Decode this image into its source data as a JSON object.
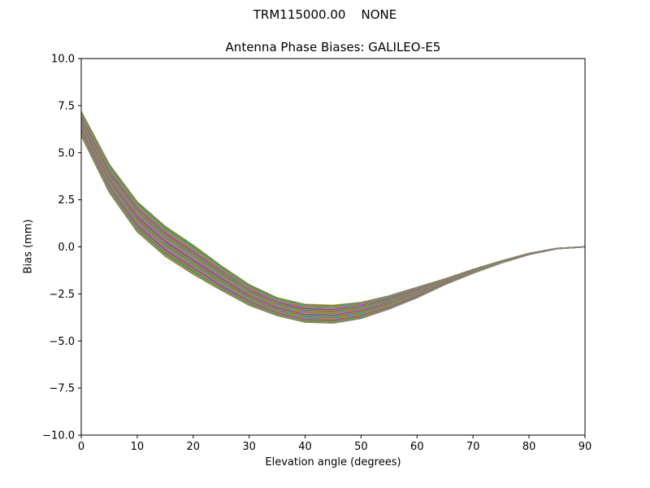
{
  "chart_data": {
    "type": "line",
    "suptitle": "TRM115000.00    NONE",
    "title": "Antenna Phase Biases: GALILEO-E5",
    "xlabel": "Elevation angle (degrees)",
    "ylabel": "Bias (mm)",
    "xlim": [
      0,
      90
    ],
    "ylim": [
      -10,
      10
    ],
    "x_ticks": [
      0,
      10,
      20,
      30,
      40,
      50,
      60,
      70,
      80,
      90
    ],
    "x_tick_labels": [
      "0",
      "10",
      "20",
      "30",
      "40",
      "50",
      "60",
      "70",
      "80",
      "90"
    ],
    "y_ticks": [
      -10,
      -7.5,
      -5,
      -2.5,
      0,
      2.5,
      5,
      7.5,
      10
    ],
    "y_tick_labels": [
      "−10.0",
      "−7.5",
      "−5.0",
      "−2.5",
      "0.0",
      "2.5",
      "5.0",
      "7.5",
      "10.0"
    ],
    "grid": false,
    "legend": "none",
    "x": [
      0,
      5,
      10,
      15,
      20,
      25,
      30,
      35,
      40,
      45,
      50,
      55,
      60,
      65,
      70,
      75,
      80,
      85,
      90
    ],
    "series": [
      {
        "values": [
          7.2,
          4.4,
          2.4,
          1.1,
          0.1,
          -1.0,
          -2.0,
          -2.7,
          -3.05,
          -3.1,
          -2.95,
          -2.6,
          -2.15,
          -1.7,
          -1.2,
          -0.75,
          -0.35,
          -0.08,
          0.0
        ]
      },
      {
        "values": [
          7.0,
          4.1,
          2.15,
          0.85,
          -0.15,
          -1.2,
          -2.2,
          -2.85,
          -3.2,
          -3.25,
          -3.05,
          -2.7,
          -2.2,
          -1.72,
          -1.22,
          -0.76,
          -0.35,
          -0.08,
          0.0
        ]
      },
      {
        "values": [
          6.85,
          3.9,
          1.95,
          0.65,
          -0.35,
          -1.35,
          -2.35,
          -3.0,
          -3.35,
          -3.4,
          -3.15,
          -2.8,
          -2.3,
          -1.75,
          -1.24,
          -0.77,
          -0.36,
          -0.08,
          0.0
        ]
      },
      {
        "values": [
          6.7,
          3.7,
          1.75,
          0.45,
          -0.55,
          -1.55,
          -2.5,
          -3.15,
          -3.5,
          -3.55,
          -3.3,
          -2.9,
          -2.38,
          -1.8,
          -1.27,
          -0.79,
          -0.37,
          -0.09,
          0.0
        ]
      },
      {
        "values": [
          6.5,
          3.5,
          1.5,
          0.2,
          -0.8,
          -1.75,
          -2.65,
          -3.3,
          -3.65,
          -3.7,
          -3.45,
          -3.0,
          -2.45,
          -1.85,
          -1.3,
          -0.8,
          -0.38,
          -0.09,
          0.0
        ]
      },
      {
        "values": [
          6.3,
          3.3,
          1.3,
          0.0,
          -1.0,
          -1.95,
          -2.8,
          -3.45,
          -3.8,
          -3.85,
          -3.6,
          -3.15,
          -2.55,
          -1.9,
          -1.33,
          -0.82,
          -0.39,
          -0.09,
          0.0
        ]
      },
      {
        "values": [
          6.1,
          3.1,
          1.05,
          -0.25,
          -1.2,
          -2.15,
          -2.95,
          -3.55,
          -3.9,
          -3.95,
          -3.7,
          -3.25,
          -2.65,
          -1.95,
          -1.36,
          -0.84,
          -0.4,
          -0.1,
          0.0
        ]
      },
      {
        "values": [
          5.9,
          2.9,
          0.8,
          -0.5,
          -1.45,
          -2.3,
          -3.1,
          -3.65,
          -4.0,
          -4.05,
          -3.8,
          -3.3,
          -2.7,
          -2.0,
          -1.4,
          -0.86,
          -0.41,
          -0.1,
          0.0
        ]
      }
    ],
    "colors": [
      "#bcbd22",
      "#8c564b",
      "#17becf",
      "#2ca02c",
      "#ff7f0e",
      "#7f7f7f",
      "#9467bd",
      "#e377c2",
      "#1f77b4",
      "#d62728"
    ]
  }
}
